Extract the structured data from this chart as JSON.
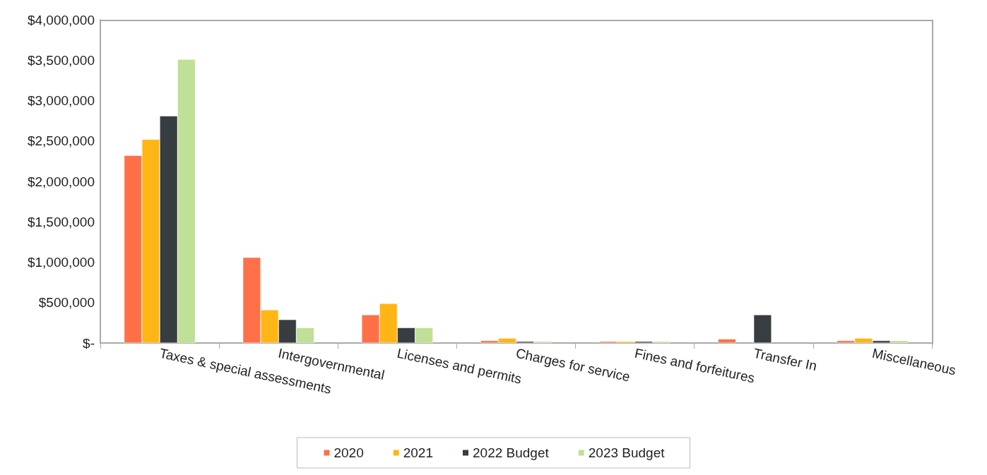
{
  "chart_data": {
    "type": "bar",
    "categories": [
      "Taxes & special assessments",
      "Intergovernmental",
      "Licenses and permits",
      "Charges for service",
      "Fines and forfeitures",
      "Transfer In",
      "Miscellaneous"
    ],
    "series": [
      {
        "name": "2020",
        "color": "#ff7049",
        "values": [
          2320000,
          1060000,
          350000,
          30000,
          20000,
          50000,
          30000
        ]
      },
      {
        "name": "2021",
        "color": "#ffb515",
        "values": [
          2520000,
          410000,
          490000,
          60000,
          20000,
          null,
          60000
        ]
      },
      {
        "name": "2022 Budget",
        "color": "#383d41",
        "values": [
          2810000,
          290000,
          190000,
          20000,
          20000,
          350000,
          30000
        ]
      },
      {
        "name": "2023 Budget",
        "color": "#bfe096",
        "values": [
          3510000,
          190000,
          190000,
          20000,
          20000,
          null,
          30000
        ]
      }
    ],
    "ylim": [
      0,
      4000000
    ],
    "yticks": [
      {
        "value": 0,
        "label": "$-"
      },
      {
        "value": 500000,
        "label": "$500,000"
      },
      {
        "value": 1000000,
        "label": "$1,000,000"
      },
      {
        "value": 1500000,
        "label": "$1,500,000"
      },
      {
        "value": 2000000,
        "label": "$2,000,000"
      },
      {
        "value": 2500000,
        "label": "$2,500,000"
      },
      {
        "value": 3000000,
        "label": "$3,000,000"
      },
      {
        "value": 3500000,
        "label": "$3,500,000"
      },
      {
        "value": 4000000,
        "label": "$4,000,000"
      }
    ],
    "grid": false,
    "legend": "bottom"
  }
}
